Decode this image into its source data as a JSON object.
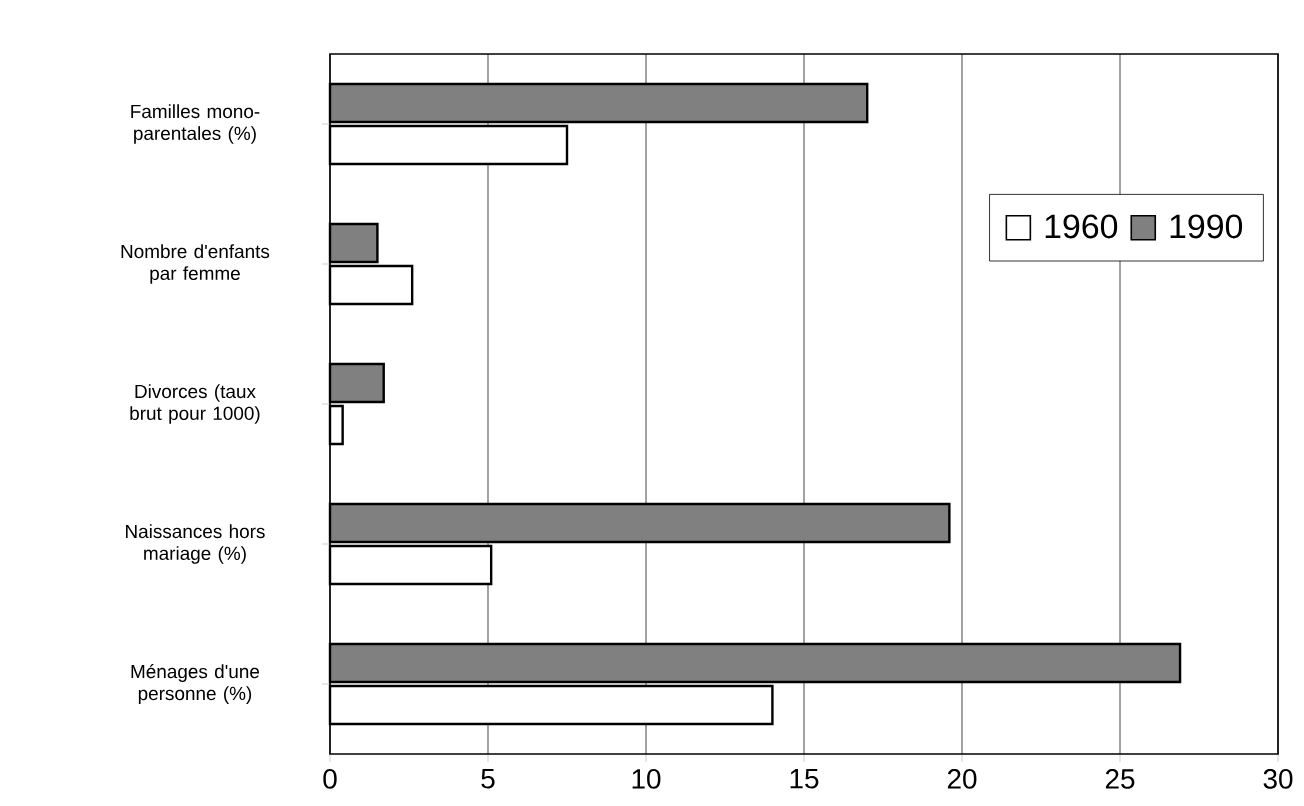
{
  "chart_data": {
    "type": "bar",
    "orientation": "horizontal",
    "categories": [
      "Familles mono-parentales (%)",
      "Nombre d'enfants par femme",
      "Divorces (taux brut pour 1000)",
      "Naissances hors mariage (%)",
      "Ménages d'une personne (%)"
    ],
    "series": [
      {
        "name": "1960",
        "color": "#ffffff",
        "values": [
          7.5,
          2.6,
          0.4,
          5.1,
          14.0
        ]
      },
      {
        "name": "1990",
        "color": "#808080",
        "values": [
          17.0,
          1.5,
          1.7,
          19.6,
          26.9
        ]
      }
    ],
    "xlim": [
      0,
      30
    ],
    "xticks": [
      0,
      5,
      10,
      15,
      20,
      25,
      30
    ],
    "grid": "x",
    "legend": "top right"
  }
}
